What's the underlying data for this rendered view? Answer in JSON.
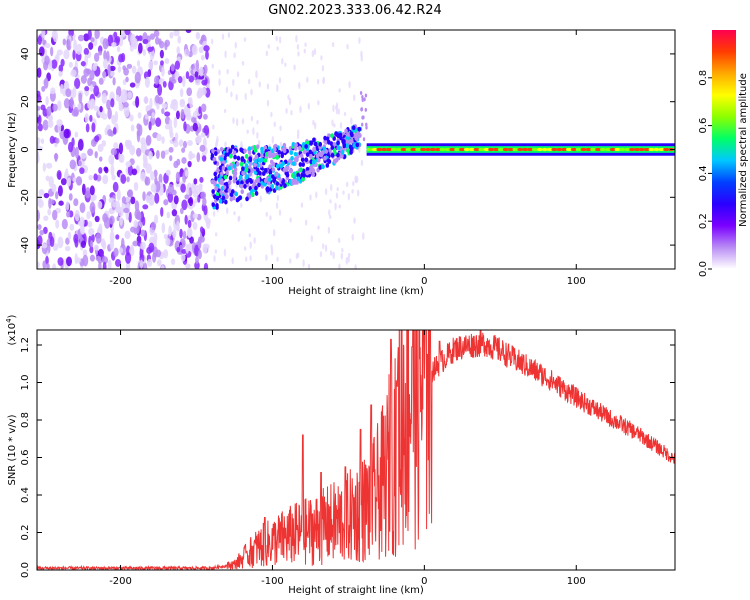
{
  "title": "GN02.2023.333.06.42.R24",
  "chart_data": [
    {
      "type": "heatmap",
      "xlabel": "Height of straight line (km)",
      "ylabel": "Frequency (Hz)",
      "xlim": [
        -255,
        165
      ],
      "ylim": [
        -50,
        50
      ],
      "xticks": [
        -200,
        -100,
        0,
        100
      ],
      "yticks": [
        -40,
        -20,
        0,
        20,
        40
      ],
      "colorbar": {
        "label": "Normalized spectral amplitude",
        "range": [
          0,
          1
        ],
        "ticks": [
          "0.0",
          "0.2",
          "0.4",
          "0.6",
          "0.8"
        ],
        "colormap": [
          "#ffffff",
          "#b98cf5",
          "#7a00ff",
          "#2a00ff",
          "#0040ff",
          "#00c8ff",
          "#00ff66",
          "#8cff00",
          "#ffff00",
          "#ffaa00",
          "#ff3c00",
          "#ff0050"
        ]
      },
      "regions": [
        {
          "label": "noise",
          "x_range": [
            -255,
            -142
          ],
          "freq_range": [
            -50,
            50
          ],
          "amplitude": 0.1
        },
        {
          "label": "signal_ramp",
          "x": [
            -140,
            -120,
            -100,
            -80,
            -60,
            -42,
            -38
          ],
          "freq": [
            -12,
            -10,
            -8,
            -5,
            0,
            6,
            1
          ],
          "amplitude": 0.35
        },
        {
          "label": "carrier_line",
          "x_range": [
            -38,
            165
          ],
          "freq": 0,
          "amplitude": 0.9
        }
      ]
    },
    {
      "type": "line",
      "xlabel": "Height of straight line (km)",
      "ylabel": "SNR (10 * v/v)",
      "y_multiplier": "(x10",
      "y_multiplier_exp": "4",
      "y_multiplier_close": ")",
      "xlim": [
        -255,
        165
      ],
      "ylim": [
        0,
        1.28
      ],
      "xticks": [
        -200,
        -100,
        0,
        100
      ],
      "yticks": [
        "0.0",
        "0.2",
        "0.4",
        "0.6",
        "0.8",
        "1.0",
        "1.2"
      ],
      "color": "#ee3333",
      "series": [
        {
          "x": [
            -255,
            -200,
            -140,
            -125,
            -110,
            -90,
            -70,
            -50,
            -35,
            -25,
            -15,
            -10,
            -5,
            0,
            10,
            20,
            30,
            40,
            50,
            60,
            80,
            100,
            120,
            140,
            165
          ],
          "y": [
            0.01,
            0.01,
            0.01,
            0.03,
            0.12,
            0.18,
            0.22,
            0.28,
            0.35,
            0.5,
            0.85,
            0.95,
            1.0,
            1.02,
            1.1,
            1.18,
            1.2,
            1.21,
            1.17,
            1.12,
            1.03,
            0.92,
            0.82,
            0.73,
            0.59
          ]
        }
      ],
      "spikes": [
        {
          "x": -117,
          "y": 0.1
        },
        {
          "x": -105,
          "y": 0.28
        },
        {
          "x": -80,
          "y": 0.72
        },
        {
          "x": -68,
          "y": 0.52
        },
        {
          "x": -52,
          "y": 0.55
        },
        {
          "x": -42,
          "y": 0.75
        },
        {
          "x": -35,
          "y": 0.88
        },
        {
          "x": -22,
          "y": 1.23
        },
        {
          "x": -18,
          "y": 0.98
        },
        {
          "x": -8,
          "y": 1.19
        },
        {
          "x": 2,
          "y": 1.15
        },
        {
          "x": 10,
          "y": 1.22
        }
      ]
    }
  ]
}
